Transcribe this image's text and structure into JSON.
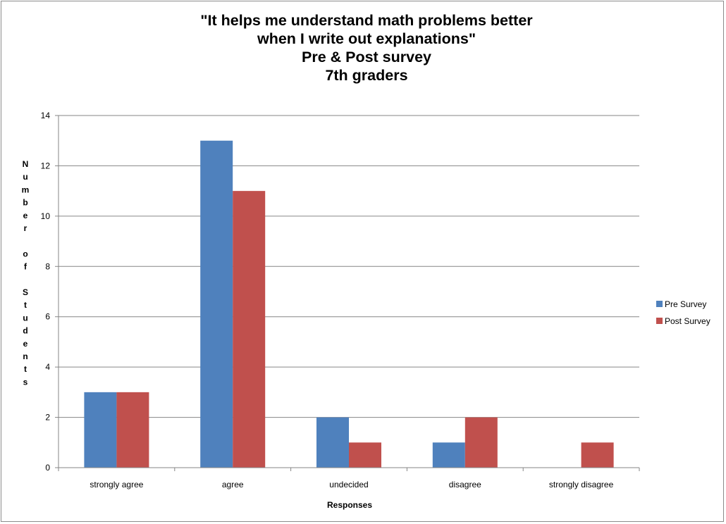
{
  "chart_data": {
    "type": "bar",
    "title_lines": [
      "\"It helps me understand math problems better",
      "when I write out explanations\"",
      "Pre & Post survey",
      "7th graders"
    ],
    "categories": [
      "strongly agree",
      "agree",
      "undecided",
      "disagree",
      "strongly disagree"
    ],
    "series": [
      {
        "name": "Pre Survey",
        "values": [
          3,
          13,
          2,
          1,
          0
        ],
        "color": "#4f81bd"
      },
      {
        "name": "Post Survey",
        "values": [
          3,
          11,
          1,
          2,
          1
        ],
        "color": "#c0504d"
      }
    ],
    "xlabel": "Responses",
    "ylabel_letters": [
      "N",
      "u",
      "m",
      "b",
      "e",
      "r",
      "",
      "o",
      "f",
      "",
      "S",
      "t",
      "u",
      "d",
      "e",
      "n",
      "t",
      "s"
    ],
    "ylim": [
      0,
      14
    ],
    "yticks": [
      0,
      2,
      4,
      6,
      8,
      10,
      12,
      14
    ],
    "grid": true,
    "legend_position": "right"
  }
}
